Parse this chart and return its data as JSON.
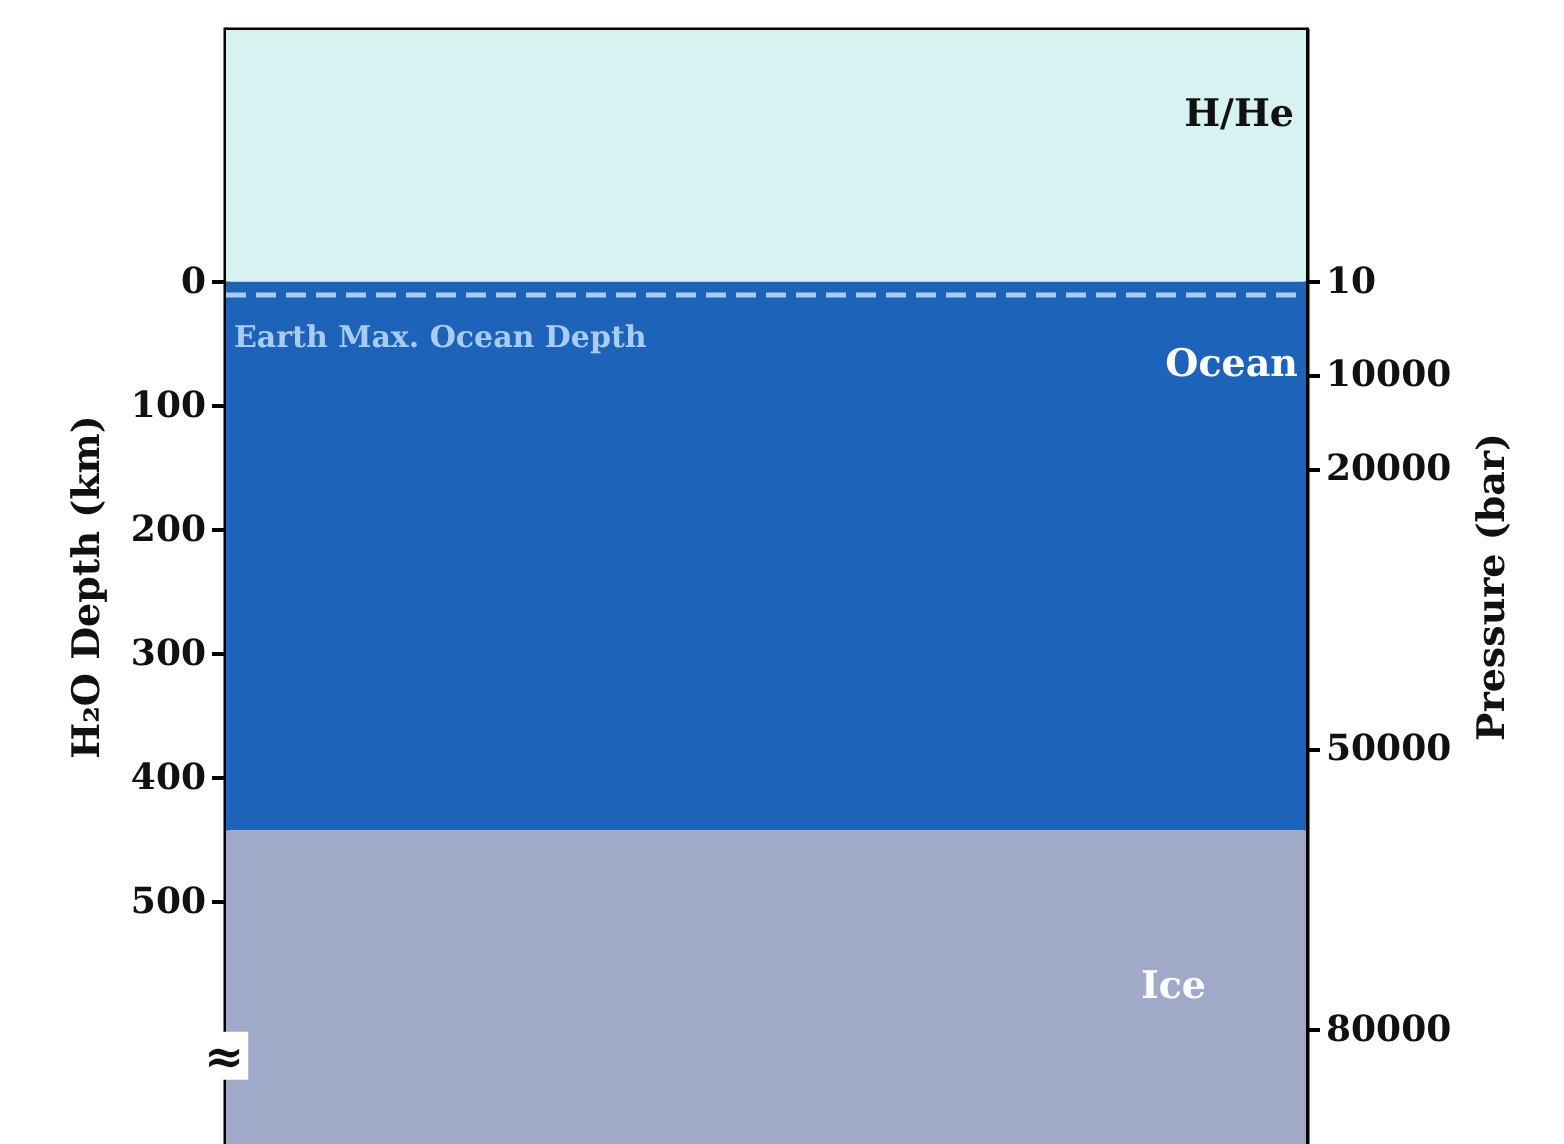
{
  "chart_data": {
    "type": "bar",
    "stacked": true,
    "ylabel": "H₂O Depth (km)",
    "y2label": "Pressure (bar)",
    "categories": [
      null
    ],
    "series": [
      {
        "name": "H/He",
        "color": "#d6f3f2",
        "values": [
          -203
        ]
      },
      {
        "name": "Ocean",
        "color": "#1d63b9",
        "values": [
          442
        ]
      },
      {
        "name": "Ice",
        "color": "#a1a9c8",
        "values": [
          253
        ]
      }
    ],
    "ylim": [
      695,
      -203
    ],
    "yticks": [
      0,
      100,
      200,
      300,
      400,
      500
    ],
    "y2lim": [
      92200,
      -26920
    ],
    "y2ticks": [
      10,
      10000,
      20000,
      50000,
      80000
    ],
    "ref_lines": [
      {
        "axis": "y",
        "value": 10,
        "label": "Earth Max. Ocean Depth",
        "color": "#a9cdf2",
        "line_style": "dashed"
      }
    ],
    "annotations": [
      {
        "text": "≈",
        "y": 627
      }
    ]
  }
}
